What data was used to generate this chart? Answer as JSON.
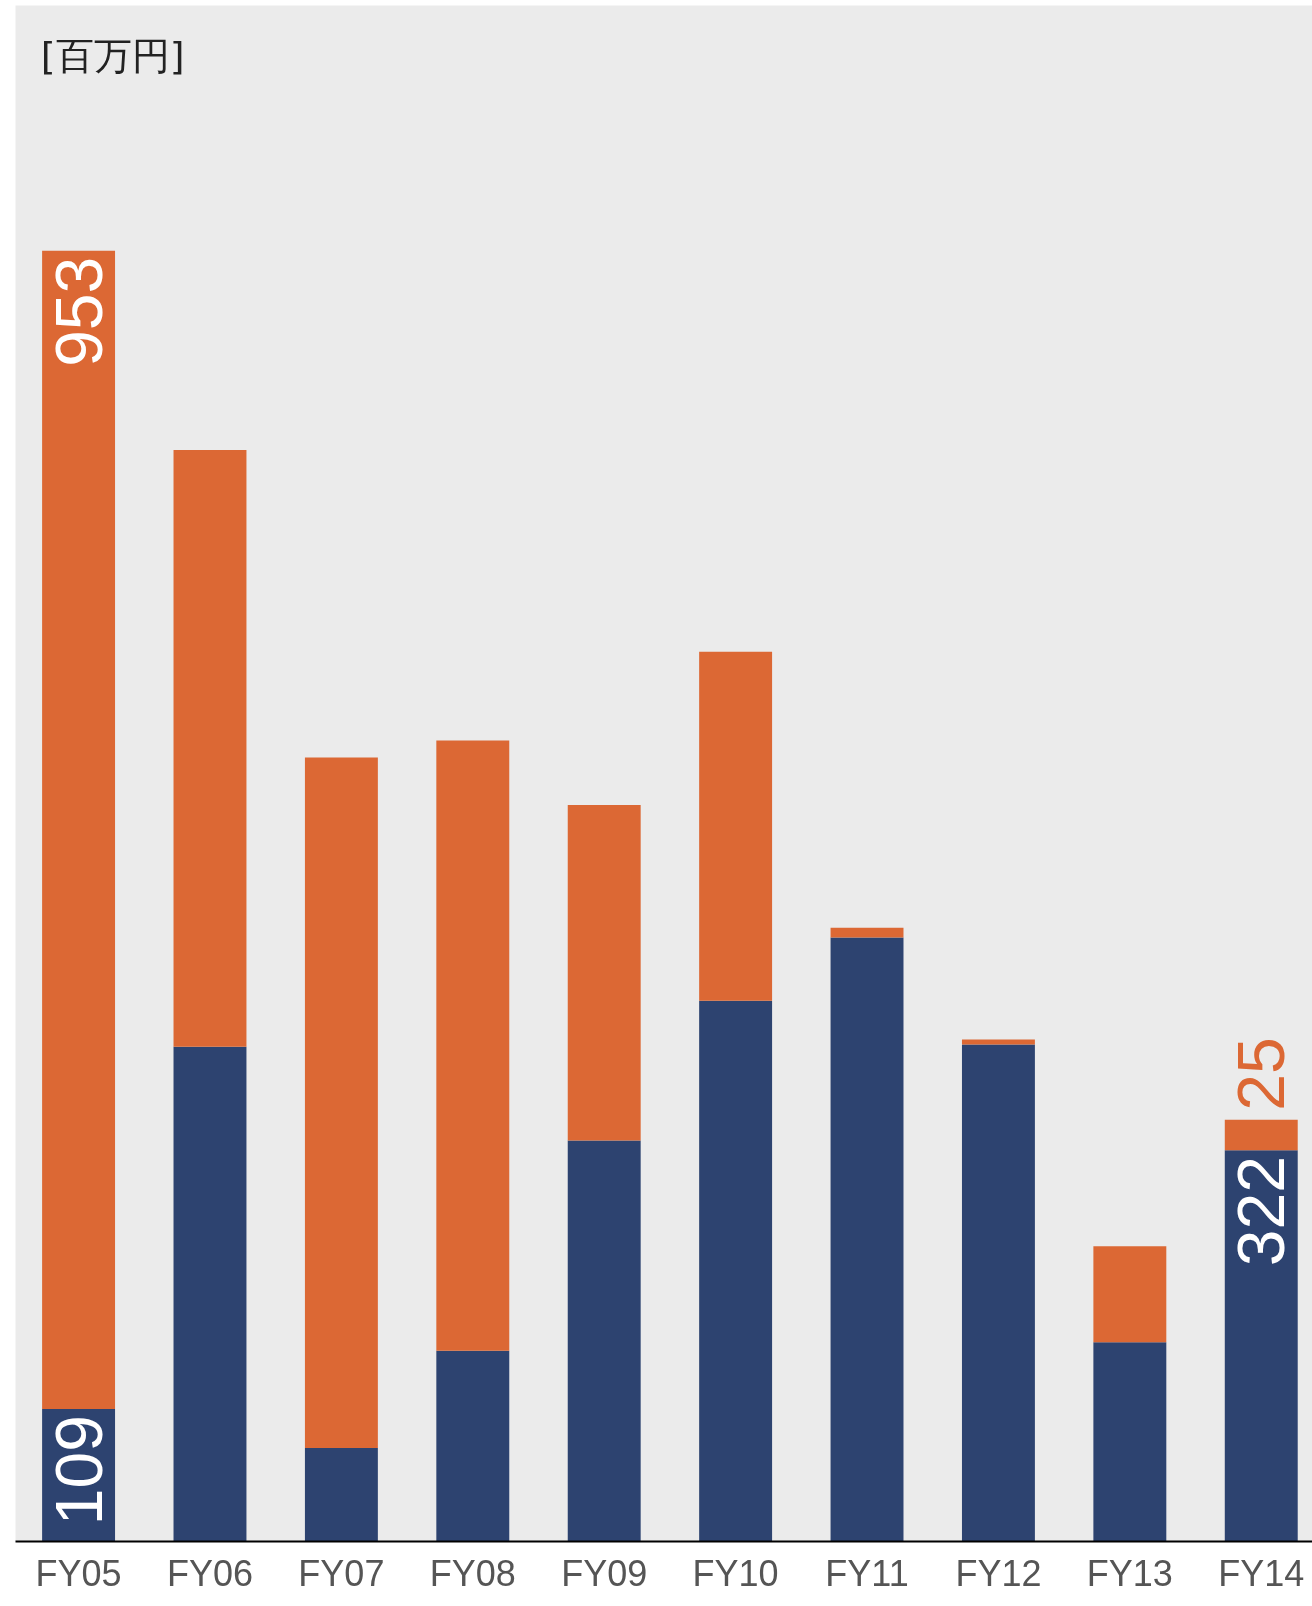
{
  "chart_data": {
    "type": "bar",
    "stacked": true,
    "ylabel": "[百万円]",
    "categories": [
      "FY05",
      "FY06",
      "FY07",
      "FY08",
      "FY09",
      "FY10",
      "FY11",
      "FY12",
      "FY13",
      "FY14"
    ],
    "series": [
      {
        "color": "#2d4370",
        "values": [
          109,
          407,
          77,
          157,
          330,
          445,
          497,
          409,
          164,
          322
        ],
        "value_labels": [
          "109",
          null,
          null,
          null,
          null,
          null,
          null,
          null,
          null,
          "322"
        ]
      },
      {
        "color": "#dc6834",
        "values": [
          953,
          491,
          568,
          502,
          276,
          287,
          8,
          4,
          79,
          25
        ],
        "value_labels": [
          "953",
          null,
          null,
          null,
          null,
          null,
          null,
          null,
          null,
          "25"
        ]
      }
    ]
  }
}
